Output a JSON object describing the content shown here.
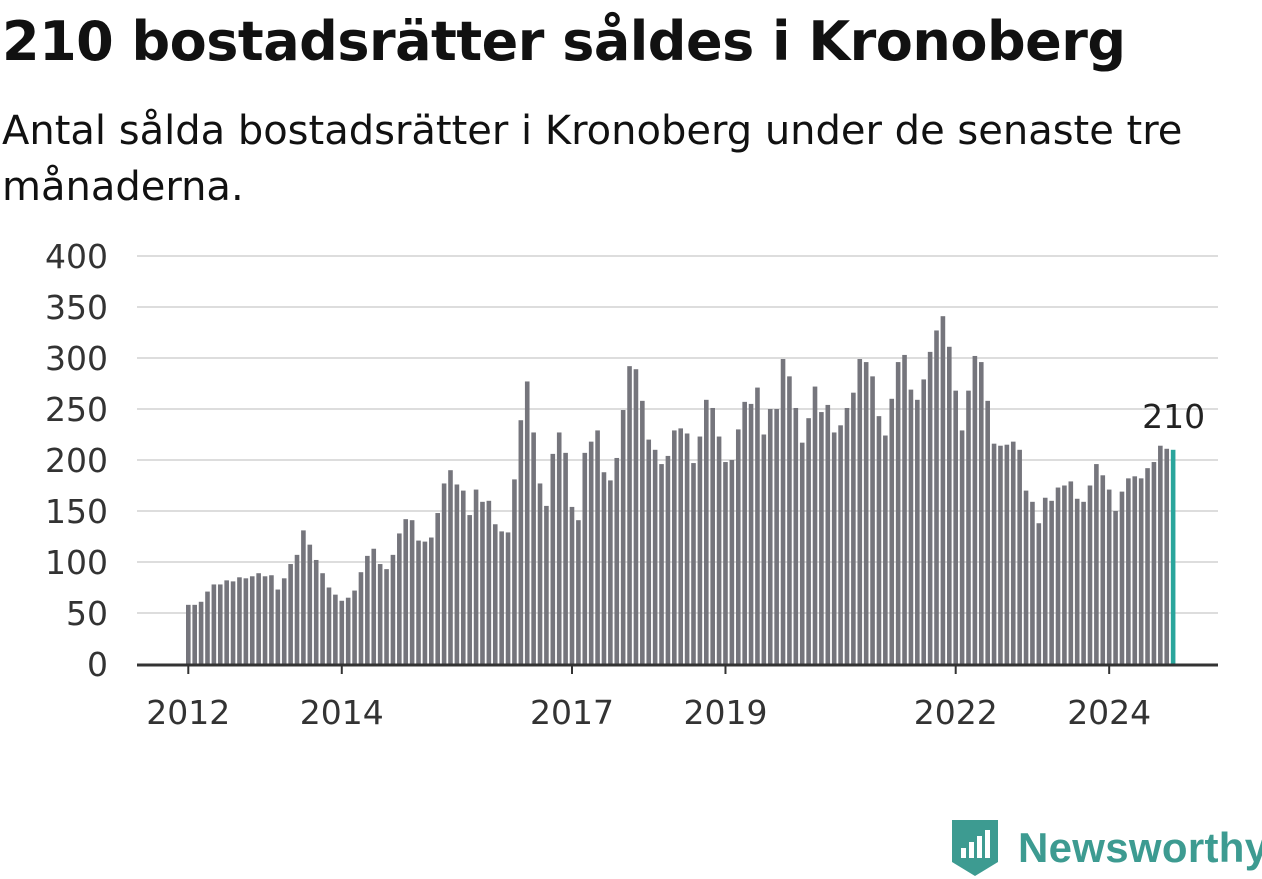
{
  "title": "210 bostadsrätter såldes i Kronoberg",
  "subtitle": "Antal sålda bostadsrätter i Kronoberg under de senaste tre månaderna.",
  "brand": {
    "name": "Newsworthy",
    "icon": "newsworthy-logo-icon",
    "color": "#3d9b91"
  },
  "colors": {
    "bar": "#75757c",
    "highlight": "#2aa59c",
    "grid": "#dddddd",
    "axis": "#333333"
  },
  "chart_data": {
    "type": "bar",
    "title": "210 bostadsrätter såldes i Kronoberg",
    "subtitle": "Antal sålda bostadsrätter i Kronoberg under de senaste tre månaderna.",
    "xlabel": "",
    "ylabel": "",
    "ylim": [
      0,
      400
    ],
    "yticks": [
      0,
      50,
      100,
      150,
      200,
      250,
      300,
      350,
      400
    ],
    "xticks": [
      {
        "label": "2012",
        "index": 0
      },
      {
        "label": "2014",
        "index": 24
      },
      {
        "label": "2017",
        "index": 60
      },
      {
        "label": "2019",
        "index": 84
      },
      {
        "label": "2022",
        "index": 120
      },
      {
        "label": "2024",
        "index": 144
      }
    ],
    "grid": true,
    "highlight_last": true,
    "last_value_label": "210",
    "values": [
      58,
      58,
      61,
      71,
      78,
      78,
      82,
      81,
      85,
      84,
      86,
      89,
      86,
      87,
      73,
      84,
      98,
      107,
      131,
      117,
      102,
      89,
      75,
      68,
      62,
      65,
      72,
      90,
      106,
      113,
      98,
      93,
      107,
      128,
      142,
      141,
      121,
      120,
      124,
      148,
      177,
      190,
      176,
      170,
      146,
      171,
      159,
      160,
      137,
      130,
      129,
      181,
      239,
      277,
      227,
      177,
      155,
      206,
      227,
      207,
      154,
      141,
      207,
      218,
      229,
      188,
      180,
      202,
      249,
      292,
      289,
      258,
      220,
      210,
      196,
      204,
      229,
      231,
      226,
      197,
      223,
      259,
      251,
      223,
      198,
      200,
      230,
      257,
      255,
      271,
      225,
      250,
      250,
      299,
      282,
      251,
      217,
      241,
      272,
      247,
      254,
      227,
      234,
      251,
      266,
      299,
      296,
      282,
      243,
      224,
      260,
      296,
      303,
      269,
      259,
      279,
      306,
      327,
      341,
      311,
      268,
      229,
      268,
      302,
      296,
      258,
      216,
      214,
      215,
      218,
      210,
      170,
      159,
      138,
      163,
      160,
      173,
      175,
      179,
      162,
      159,
      175,
      196,
      185,
      171,
      150,
      169,
      182,
      184,
      182,
      192,
      198,
      214,
      211,
      210
    ]
  }
}
